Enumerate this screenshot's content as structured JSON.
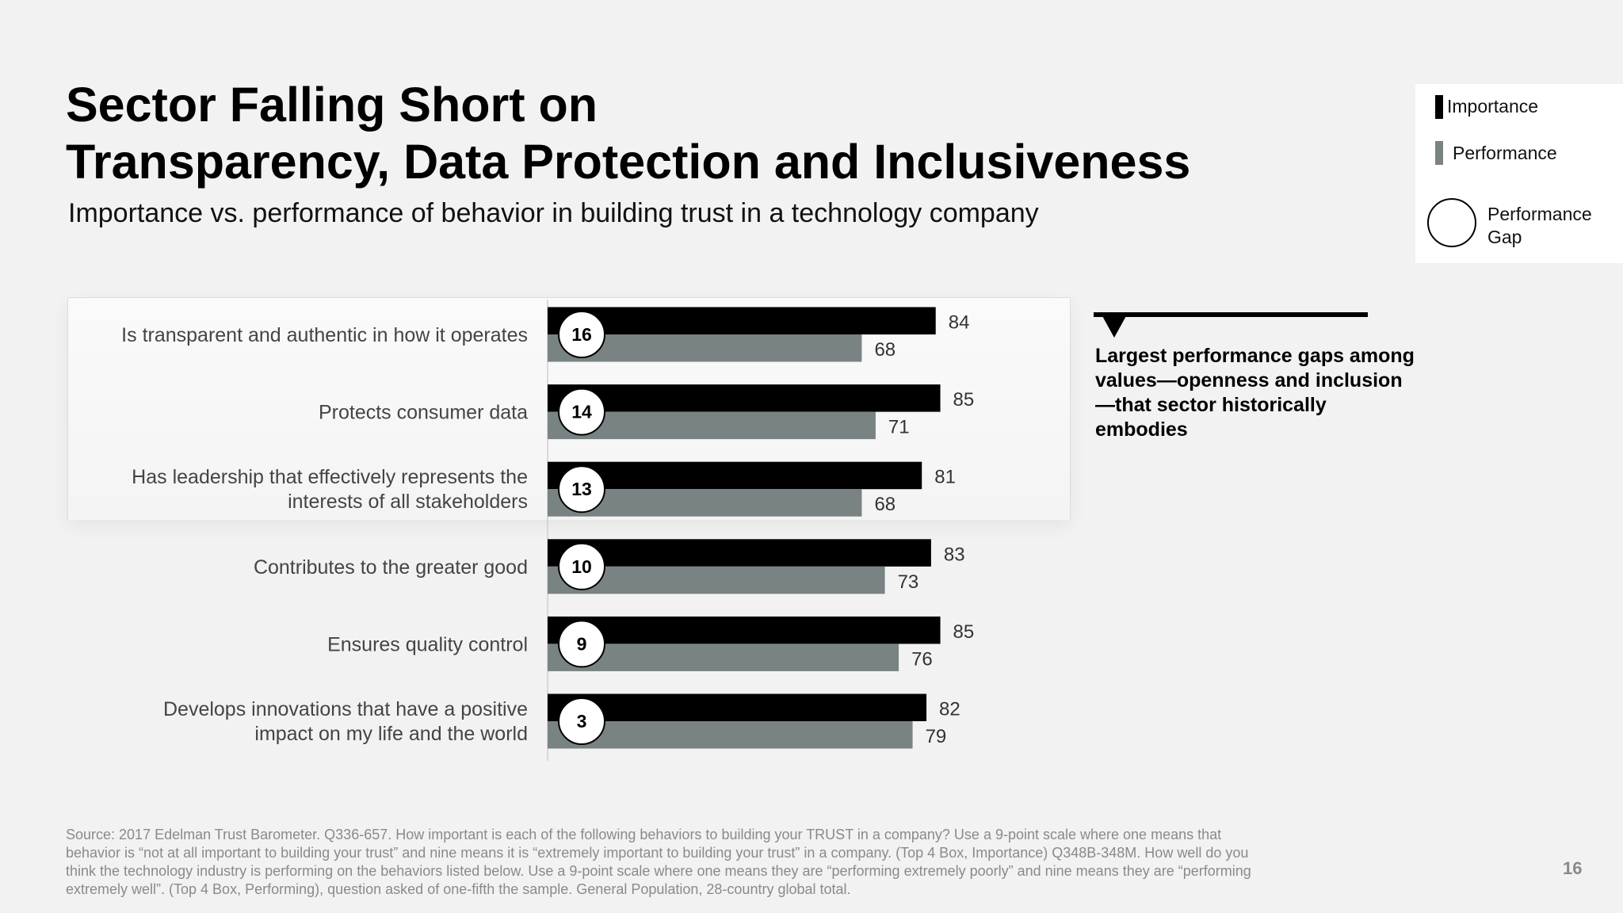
{
  "title_lines": [
    "Sector Falling Short on",
    "Transparency, Data Protection and Inclusiveness"
  ],
  "subtitle": "Importance vs. performance of behavior in building trust in a technology company",
  "legend": {
    "importance": "Importance",
    "performance": "Performance",
    "gap": [
      "Performance",
      "Gap"
    ]
  },
  "callout": "Largest performance gaps among values—openness and inclusion—that sector historically embodies",
  "source": "Source: 2017 Edelman Trust Barometer. Q336-657. How important is each of the following behaviors to building your TRUST in a company? Use a 9-point scale where one means that behavior is “not at all important to building your trust” and nine means it is “extremely important to building your trust” in a company. (Top 4 Box, Importance) Q348B-348M. How well do you think the technology industry is performing on the behaviors listed below. Use a 9-point scale where one means they are “performing extremely poorly” and nine means they are “performing extremely well”. (Top 4 Box, Performing), question asked of one-fifth the sample. General Population, 28-country global total.",
  "page_number": "16",
  "colors": {
    "importance": "#000000",
    "performance": "#7a8384",
    "label_text": "#444444"
  },
  "chart_data": {
    "type": "bar",
    "orientation": "horizontal",
    "categories": [
      [
        "Is transparent and authentic in how it operates"
      ],
      [
        "Protects consumer data"
      ],
      [
        "Has leadership that effectively represents the",
        "interests of all stakeholders"
      ],
      [
        "Contributes to the greater good"
      ],
      [
        "Ensures quality control"
      ],
      [
        "Develops innovations that have a positive",
        "impact on my life and the world"
      ]
    ],
    "series": [
      {
        "name": "Importance",
        "values": [
          84,
          85,
          81,
          83,
          85,
          82
        ]
      },
      {
        "name": "Performance",
        "values": [
          68,
          71,
          68,
          73,
          76,
          79
        ]
      }
    ],
    "gaps": [
      16,
      14,
      13,
      10,
      9,
      3
    ],
    "xlim": [
      0,
      100
    ]
  }
}
